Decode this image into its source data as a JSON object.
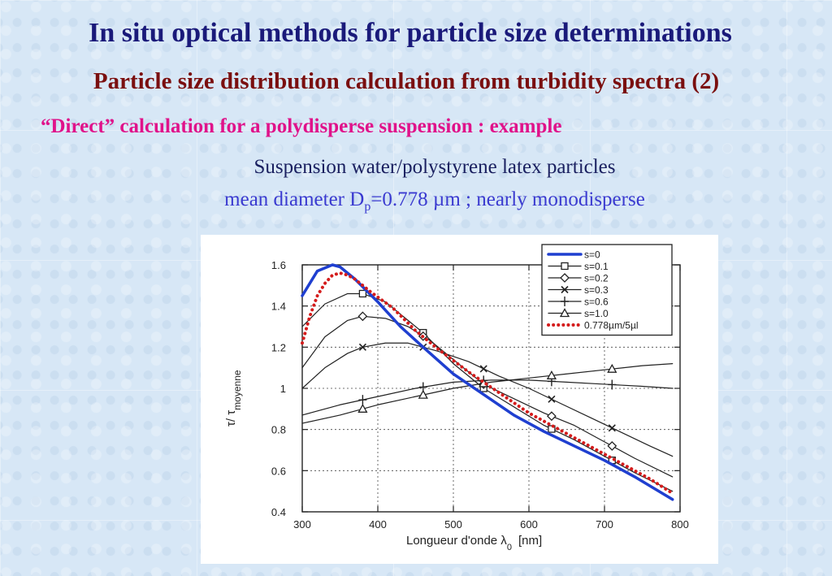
{
  "slide": {
    "title": "In situ optical methods for particle size determinations",
    "subtitle": "Particle size distribution calculation from turbidity spectra (2)",
    "example_line": "“Direct” calculation for a polydisperse suspension : example",
    "suspension_line": "Suspension water/polystyrene latex particles",
    "mean_prefix": "mean diameter D",
    "mean_sub": "p",
    "mean_suffix": "=0.778 µm ; nearly monodisperse"
  },
  "chart_data": {
    "type": "line",
    "xlabel_main": "Longueur d'onde λ",
    "xlabel_sub": "0",
    "xlabel_unit": "[nm]",
    "ylabel_main": "τ/ τ",
    "ylabel_sub": "moyenne",
    "xlim": [
      300,
      800
    ],
    "ylim": [
      0.4,
      1.6
    ],
    "xticks": [
      "300",
      "400",
      "500",
      "600",
      "700",
      "800"
    ],
    "yticks": [
      "0.4",
      "0.6",
      "0.8",
      "1",
      "1.2",
      "1.4",
      "1.6"
    ],
    "grid": true,
    "legend_position": "top-right",
    "colors": {
      "blue": "#1f3fd0",
      "red": "#d41c1c",
      "black": "#222222"
    },
    "series": [
      {
        "name": "s=0",
        "color": "#1f3fd0",
        "width": 3.5,
        "marker": "none",
        "x": [
          300,
          320,
          340,
          350,
          370,
          400,
          430,
          460,
          500,
          540,
          580,
          620,
          660,
          700,
          740,
          790
        ],
        "y": [
          1.45,
          1.57,
          1.6,
          1.59,
          1.53,
          1.42,
          1.3,
          1.2,
          1.07,
          0.97,
          0.87,
          0.79,
          0.72,
          0.65,
          0.57,
          0.46
        ]
      },
      {
        "name": "s=0.1",
        "color": "#222222",
        "width": 1.2,
        "marker": "square",
        "x": [
          300,
          330,
          360,
          380,
          410,
          440,
          460,
          500,
          540,
          580,
          620,
          660,
          700,
          740,
          790
        ],
        "y": [
          1.3,
          1.41,
          1.46,
          1.46,
          1.42,
          1.33,
          1.27,
          1.12,
          1.0,
          0.91,
          0.82,
          0.75,
          0.67,
          0.59,
          0.5
        ],
        "markers_x": [
          380,
          460,
          540,
          630,
          710
        ]
      },
      {
        "name": "s=0.2",
        "color": "#222222",
        "width": 1.2,
        "marker": "diamond",
        "x": [
          300,
          330,
          360,
          380,
          410,
          440,
          470,
          500,
          540,
          580,
          620,
          660,
          700,
          740,
          790
        ],
        "y": [
          1.1,
          1.25,
          1.33,
          1.35,
          1.34,
          1.3,
          1.23,
          1.14,
          1.02,
          0.95,
          0.88,
          0.82,
          0.74,
          0.66,
          0.57
        ],
        "markers_x": [
          380,
          460,
          540,
          630,
          710
        ]
      },
      {
        "name": "s=0.3",
        "color": "#222222",
        "width": 1.2,
        "marker": "x",
        "x": [
          300,
          330,
          360,
          380,
          410,
          440,
          480,
          520,
          560,
          600,
          640,
          680,
          720,
          760,
          790
        ],
        "y": [
          1.0,
          1.1,
          1.17,
          1.2,
          1.22,
          1.22,
          1.18,
          1.13,
          1.06,
          1.0,
          0.93,
          0.86,
          0.79,
          0.72,
          0.67
        ],
        "markers_x": [
          380,
          460,
          540,
          630,
          710
        ]
      },
      {
        "name": "s=0.6",
        "color": "#222222",
        "width": 1.2,
        "marker": "plus",
        "x": [
          300,
          350,
          400,
          450,
          500,
          550,
          600,
          650,
          700,
          750,
          790
        ],
        "y": [
          0.87,
          0.92,
          0.96,
          1.0,
          1.03,
          1.04,
          1.04,
          1.03,
          1.02,
          1.01,
          1.0
        ],
        "markers_x": [
          380,
          460,
          540,
          630,
          710
        ]
      },
      {
        "name": "s=1.0",
        "color": "#222222",
        "width": 1.2,
        "marker": "triangle",
        "x": [
          300,
          350,
          400,
          450,
          500,
          550,
          600,
          650,
          700,
          750,
          790
        ],
        "y": [
          0.83,
          0.87,
          0.92,
          0.96,
          1.0,
          1.03,
          1.05,
          1.07,
          1.09,
          1.11,
          1.12
        ],
        "markers_x": [
          380,
          460,
          540,
          630,
          710
        ]
      },
      {
        "name": "0.778µm/5µl",
        "color": "#d41c1c",
        "width": 3.0,
        "marker": "dotted",
        "x": [
          300,
          310,
          320,
          330,
          340,
          350,
          360,
          370,
          390,
          420,
          450,
          480,
          520,
          560,
          600,
          640,
          680,
          720,
          760,
          790
        ],
        "y": [
          1.22,
          1.35,
          1.45,
          1.51,
          1.55,
          1.56,
          1.55,
          1.53,
          1.47,
          1.39,
          1.28,
          1.19,
          1.08,
          0.98,
          0.88,
          0.8,
          0.72,
          0.64,
          0.56,
          0.49
        ]
      }
    ]
  }
}
